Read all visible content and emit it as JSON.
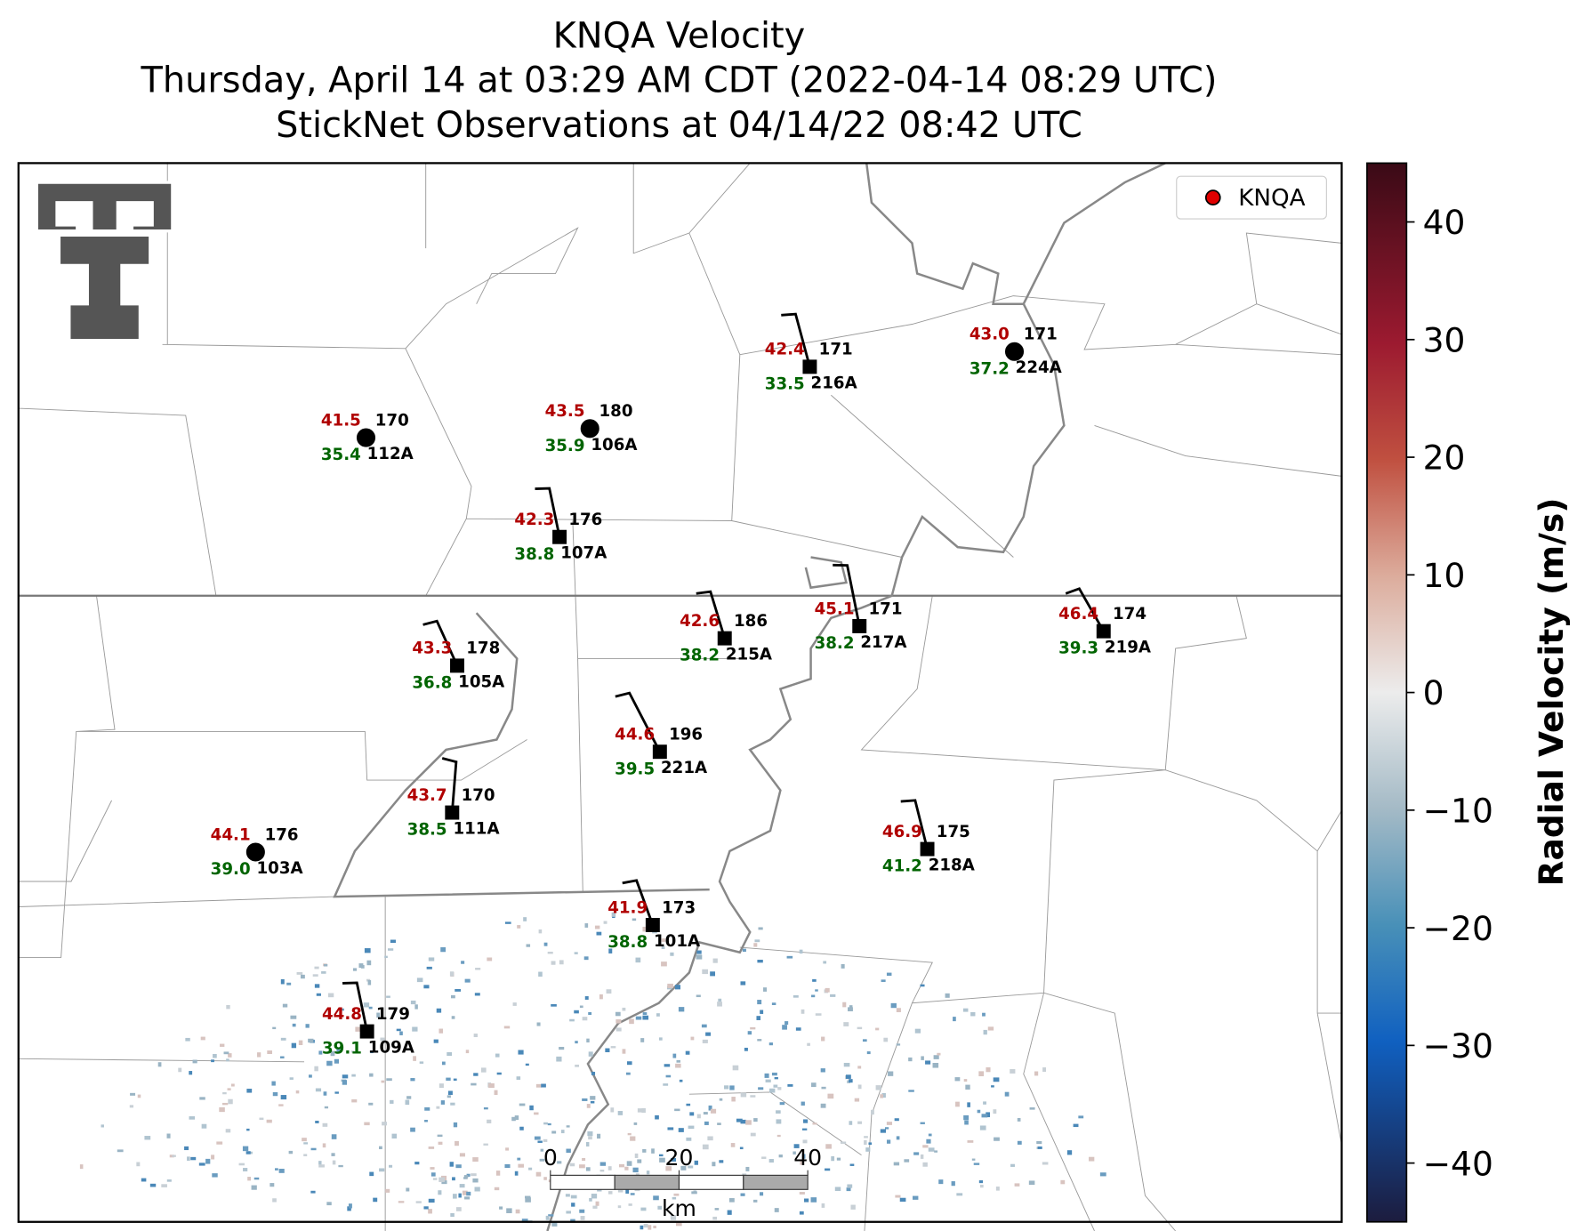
{
  "title": {
    "lines": [
      "KNQA Velocity",
      "Thursday, April 14 at 03:29 AM CDT (2022-04-14 08:29 UTC)",
      "StickNet Observations at 04/14/22 08:42 UTC"
    ]
  },
  "legend": {
    "label": "KNQA",
    "color": "#e00000"
  },
  "colorbar": {
    "label": "Radial Velocity (m/s)",
    "lim": [
      -45,
      45
    ],
    "ticks": [
      {
        "value": -40,
        "label": "−40"
      },
      {
        "value": -30,
        "label": "−30"
      },
      {
        "value": -20,
        "label": "−20"
      },
      {
        "value": -10,
        "label": "−10"
      },
      0,
      10,
      20,
      30,
      40
    ]
  },
  "scale_bar": {
    "ticks": [
      0,
      20,
      40
    ],
    "unit": "km"
  },
  "stations": [
    {
      "id": "112A",
      "upper_value": "41.5",
      "direction": "170",
      "lower_value": "35.4",
      "marker": "circle"
    },
    {
      "id": "106A",
      "upper_value": "43.5",
      "direction": "180",
      "lower_value": "35.9",
      "marker": "circle"
    },
    {
      "id": "216A",
      "upper_value": "42.4",
      "direction": "171",
      "lower_value": "33.5",
      "marker": "square"
    },
    {
      "id": "224A",
      "upper_value": "43.0",
      "direction": "171",
      "lower_value": "37.2",
      "marker": "circle"
    },
    {
      "id": "107A",
      "upper_value": "42.3",
      "direction": "176",
      "lower_value": "38.8",
      "marker": "square"
    },
    {
      "id": "215A",
      "upper_value": "42.6",
      "direction": "186",
      "lower_value": "38.2",
      "marker": "square"
    },
    {
      "id": "217A",
      "upper_value": "45.1",
      "direction": "171",
      "lower_value": "38.2",
      "marker": "square"
    },
    {
      "id": "219A",
      "upper_value": "46.4",
      "direction": "174",
      "lower_value": "39.3",
      "marker": "square"
    },
    {
      "id": "105A",
      "upper_value": "43.3",
      "direction": "178",
      "lower_value": "36.8",
      "marker": "square"
    },
    {
      "id": "221A",
      "upper_value": "44.6",
      "direction": "196",
      "lower_value": "39.5",
      "marker": "square"
    },
    {
      "id": "111A",
      "upper_value": "43.7",
      "direction": "170",
      "lower_value": "38.5",
      "marker": "square"
    },
    {
      "id": "103A",
      "upper_value": "44.1",
      "direction": "176",
      "lower_value": "39.0",
      "marker": "circle"
    },
    {
      "id": "218A",
      "upper_value": "46.9",
      "direction": "175",
      "lower_value": "41.2",
      "marker": "square"
    },
    {
      "id": "101A",
      "upper_value": "41.9",
      "direction": "173",
      "lower_value": "38.8",
      "marker": "square"
    },
    {
      "id": "109A",
      "upper_value": "44.8",
      "direction": "179",
      "lower_value": "39.1",
      "marker": "square"
    }
  ]
}
